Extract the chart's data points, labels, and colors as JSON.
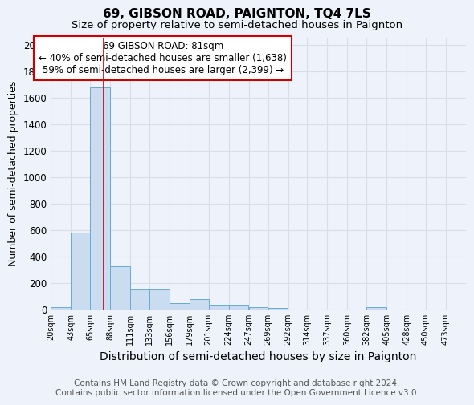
{
  "title": "69, GIBSON ROAD, PAIGNTON, TQ4 7LS",
  "subtitle": "Size of property relative to semi-detached houses in Paignton",
  "xlabel": "Distribution of semi-detached houses by size in Paignton",
  "ylabel": "Number of semi-detached properties",
  "footer_line1": "Contains HM Land Registry data © Crown copyright and database right 2024.",
  "footer_line2": "Contains public sector information licensed under the Open Government Licence v3.0.",
  "annotation_title": "69 GIBSON ROAD: 81sqm",
  "annotation_line1": "← 40% of semi-detached houses are smaller (1,638)",
  "annotation_line2": "59% of semi-detached houses are larger (2,399) →",
  "property_size": 81,
  "bar_left_edges": [
    20,
    43,
    65,
    88,
    111,
    133,
    156,
    179,
    201,
    224,
    247,
    269,
    292,
    314,
    337,
    360,
    382,
    405,
    428,
    450
  ],
  "bar_widths": [
    23,
    22,
    23,
    23,
    22,
    23,
    23,
    22,
    23,
    23,
    22,
    23,
    22,
    23,
    23,
    22,
    23,
    23,
    22,
    23
  ],
  "bar_heights": [
    20,
    580,
    1680,
    325,
    160,
    160,
    50,
    80,
    35,
    35,
    20,
    10,
    0,
    0,
    0,
    0,
    15,
    0,
    0,
    0
  ],
  "tick_labels": [
    "20sqm",
    "43sqm",
    "65sqm",
    "88sqm",
    "111sqm",
    "133sqm",
    "156sqm",
    "179sqm",
    "201sqm",
    "224sqm",
    "247sqm",
    "269sqm",
    "292sqm",
    "314sqm",
    "337sqm",
    "360sqm",
    "382sqm",
    "405sqm",
    "428sqm",
    "450sqm",
    "473sqm"
  ],
  "bar_color": "#c9dcf0",
  "bar_edge_color": "#6aaad4",
  "red_line_x": 81,
  "ylim": [
    0,
    2050
  ],
  "yticks": [
    0,
    200,
    400,
    600,
    800,
    1000,
    1200,
    1400,
    1600,
    1800,
    2000
  ],
  "grid_color": "#d8dde8",
  "background_color": "#eef2fa",
  "annotation_box_color": "#ffffff",
  "annotation_box_edge": "#cc0000",
  "title_fontsize": 11,
  "subtitle_fontsize": 9.5,
  "xlabel_fontsize": 10,
  "ylabel_fontsize": 9,
  "annotation_fontsize": 8.5,
  "footer_fontsize": 7.5
}
